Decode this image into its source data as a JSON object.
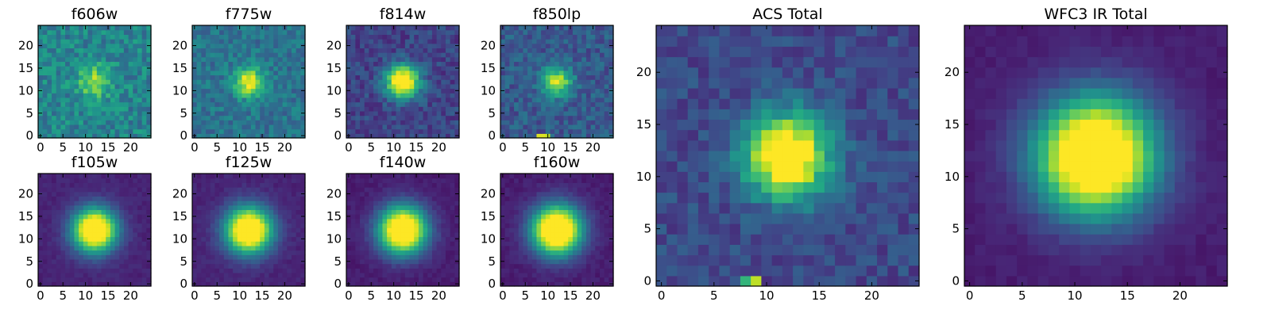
{
  "chart_data": {
    "type": "heatmap",
    "colormap": "viridis",
    "grid": false,
    "image_size": [
      25,
      25
    ],
    "panels": [
      {
        "title": "f606w",
        "xticks": [
          0,
          5,
          10,
          15,
          20
        ],
        "yticks": [
          0,
          5,
          10,
          15,
          20
        ],
        "xlim": [
          0,
          24
        ],
        "ylim": [
          0,
          24
        ],
        "center": [
          12,
          12
        ],
        "sigma": 2.4,
        "peak": 0.5,
        "noise": 0.28,
        "background": 0.45
      },
      {
        "title": "f775w",
        "xticks": [
          0,
          5,
          10,
          15,
          20
        ],
        "yticks": [
          0,
          5,
          10,
          15,
          20
        ],
        "xlim": [
          0,
          24
        ],
        "ylim": [
          0,
          24
        ],
        "center": [
          12,
          12
        ],
        "sigma": 2.3,
        "peak": 0.6,
        "noise": 0.22,
        "background": 0.38
      },
      {
        "title": "f814w",
        "xticks": [
          0,
          5,
          10,
          15,
          20
        ],
        "yticks": [
          0,
          5,
          10,
          15,
          20
        ],
        "xlim": [
          0,
          24
        ],
        "ylim": [
          0,
          24
        ],
        "center": [
          12,
          12
        ],
        "sigma": 2.6,
        "peak": 0.75,
        "noise": 0.2,
        "background": 0.2
      },
      {
        "title": "f850lp",
        "xticks": [
          0,
          5,
          10,
          15,
          20
        ],
        "yticks": [
          0,
          5,
          10,
          15,
          20
        ],
        "xlim": [
          0,
          24
        ],
        "ylim": [
          0,
          24
        ],
        "center": [
          12,
          12
        ],
        "sigma": 2.3,
        "peak": 0.55,
        "noise": 0.22,
        "background": 0.28,
        "hot_pixels": [
          {
            "x": 8,
            "y": 0,
            "v": 0.95
          },
          {
            "x": 9,
            "y": 0,
            "v": 0.95
          },
          {
            "x": 10,
            "y": 0,
            "v": 0.9
          }
        ]
      },
      {
        "title": "f105w",
        "xticks": [
          0,
          5,
          10,
          15,
          20
        ],
        "yticks": [
          0,
          5,
          10,
          15,
          20
        ],
        "xlim": [
          0,
          24
        ],
        "ylim": [
          0,
          24
        ],
        "center": [
          12,
          12
        ],
        "sigma": 3.4,
        "peak": 0.85,
        "noise": 0.06,
        "background": 0.1
      },
      {
        "title": "f125w",
        "xticks": [
          0,
          5,
          10,
          15,
          20
        ],
        "yticks": [
          0,
          5,
          10,
          15,
          20
        ],
        "xlim": [
          0,
          24
        ],
        "ylim": [
          0,
          24
        ],
        "center": [
          12,
          12
        ],
        "sigma": 3.6,
        "peak": 0.85,
        "noise": 0.06,
        "background": 0.1
      },
      {
        "title": "f140w",
        "xticks": [
          0,
          5,
          10,
          15,
          20
        ],
        "yticks": [
          0,
          5,
          10,
          15,
          20
        ],
        "xlim": [
          0,
          24
        ],
        "ylim": [
          0,
          24
        ],
        "center": [
          12,
          12
        ],
        "sigma": 3.7,
        "peak": 0.85,
        "noise": 0.06,
        "background": 0.08
      },
      {
        "title": "f160w",
        "xticks": [
          0,
          5,
          10,
          15,
          20
        ],
        "yticks": [
          0,
          5,
          10,
          15,
          20
        ],
        "xlim": [
          0,
          24
        ],
        "ylim": [
          0,
          24
        ],
        "center": [
          12,
          12
        ],
        "sigma": 3.8,
        "peak": 0.9,
        "noise": 0.06,
        "background": 0.08
      },
      {
        "title": "ACS Total",
        "xticks": [
          0,
          5,
          10,
          15,
          20
        ],
        "yticks": [
          0,
          5,
          10,
          15,
          20
        ],
        "xlim": [
          0,
          24
        ],
        "ylim": [
          0,
          24
        ],
        "center": [
          12,
          12
        ],
        "sigma": 2.8,
        "peak": 0.8,
        "noise": 0.18,
        "background": 0.22,
        "hot_pixels": [
          {
            "x": 8,
            "y": 0,
            "v": 0.65
          },
          {
            "x": 9,
            "y": 0,
            "v": 0.9
          }
        ]
      },
      {
        "title": "WFC3 IR Total",
        "xticks": [
          0,
          5,
          10,
          15,
          20
        ],
        "yticks": [
          0,
          5,
          10,
          15,
          20
        ],
        "xlim": [
          0,
          24
        ],
        "ylim": [
          0,
          24
        ],
        "center": [
          12,
          12
        ],
        "sigma": 3.9,
        "peak": 0.9,
        "noise": 0.05,
        "background": 0.08
      }
    ]
  }
}
